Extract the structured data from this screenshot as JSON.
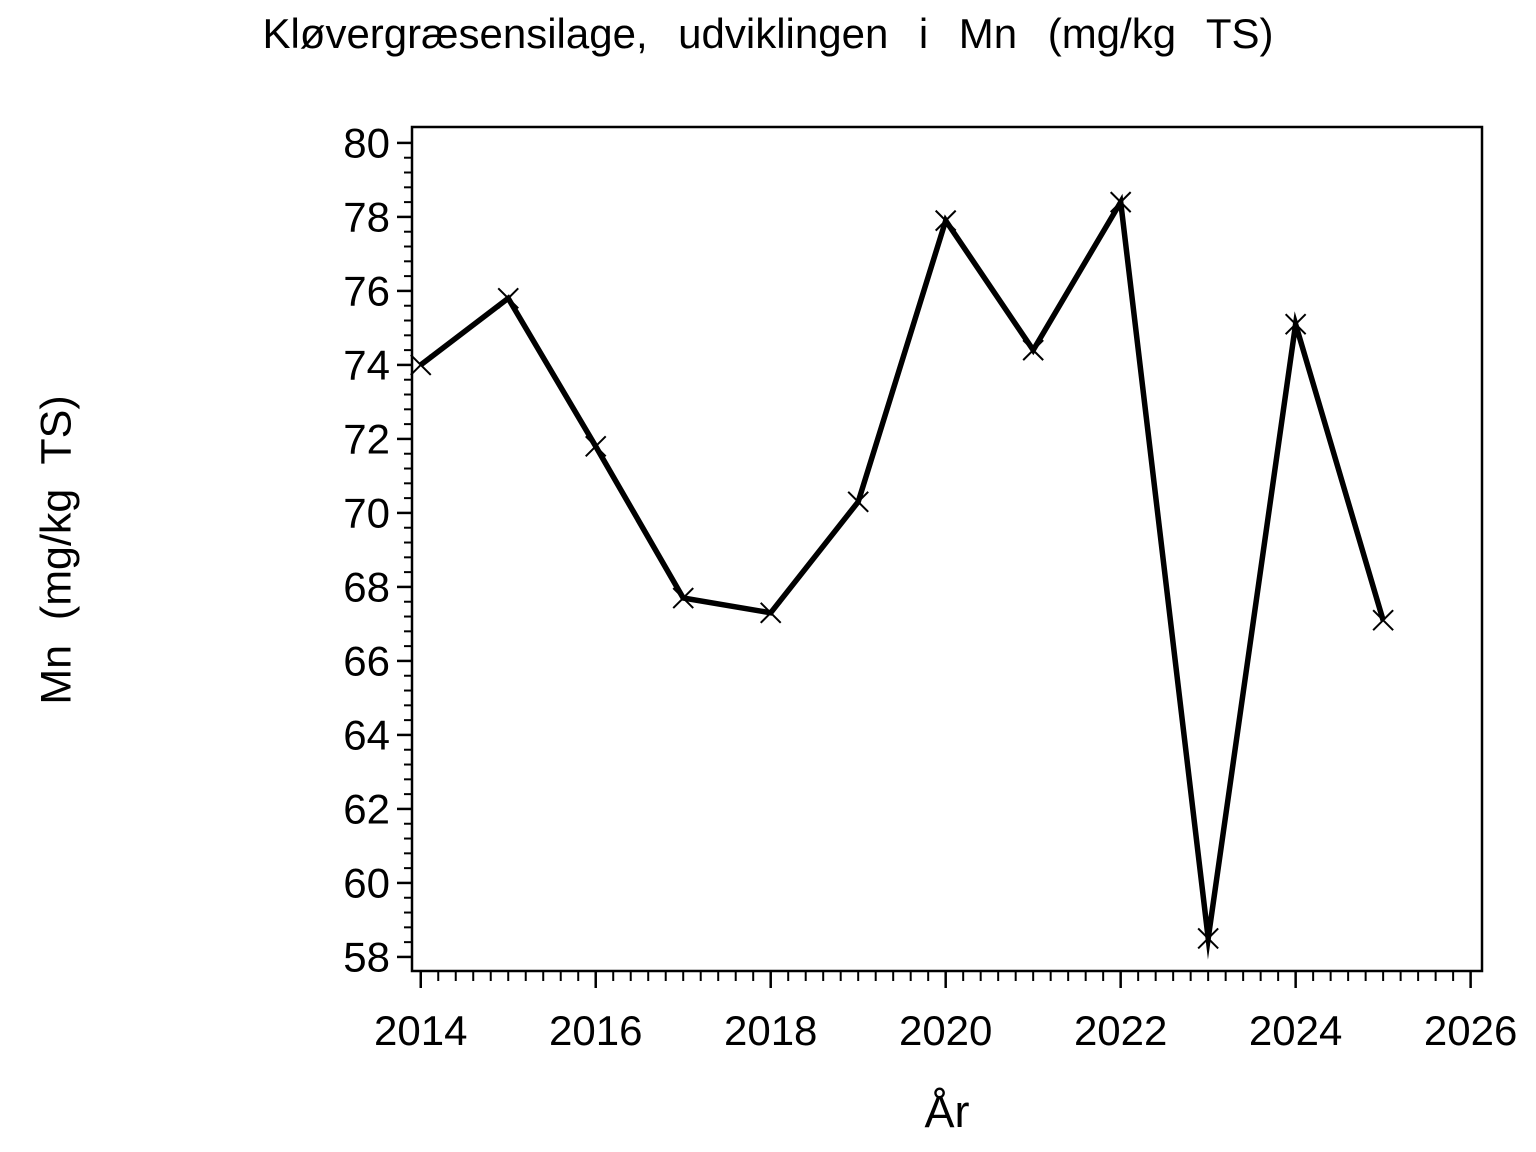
{
  "chart_data": {
    "type": "line",
    "title": "Kløvergræsensilage, udviklingen i Mn (mg/kg TS)",
    "xlabel": "År",
    "ylabel": "Mn (mg/kg TS)",
    "x": [
      2014,
      2015,
      2016,
      2017,
      2018,
      2019,
      2020,
      2021,
      2022,
      2023,
      2024,
      2025
    ],
    "series": [
      {
        "name": "Mn (mg/kg TS)",
        "marker": "x",
        "color": "#000000",
        "values": [
          74.0,
          75.8,
          71.8,
          67.7,
          67.3,
          70.3,
          77.9,
          74.4,
          78.4,
          58.5,
          75.1,
          67.1
        ]
      }
    ],
    "xlim": [
      2013.9,
      2026.13
    ],
    "ylim": [
      57.62,
      80.43
    ],
    "x_ticks": [
      2014,
      2016,
      2018,
      2020,
      2022,
      2024,
      2026
    ],
    "y_ticks": [
      58,
      60,
      62,
      64,
      66,
      68,
      70,
      72,
      74,
      76,
      78,
      80
    ],
    "x_minor_step": 0.2,
    "y_minor_step": 0.4,
    "grid": "off",
    "legend": "none",
    "axis_color": "#000000",
    "text_color": "#000000",
    "background": "#ffffff"
  }
}
